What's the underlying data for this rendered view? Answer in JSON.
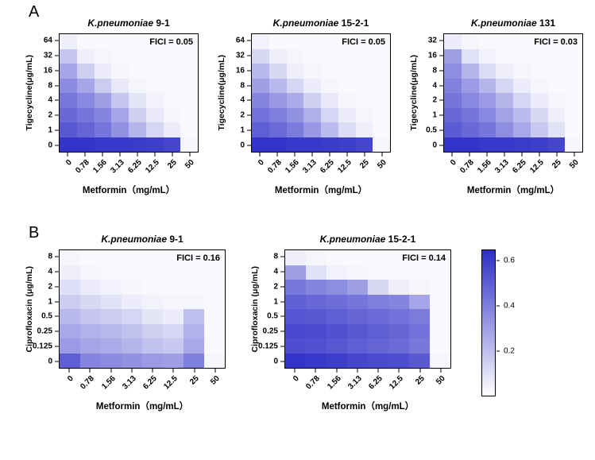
{
  "figure": {
    "section_a": "A",
    "section_b": "B"
  },
  "colorbar": {
    "tick_values": [
      0.6,
      0.4,
      0.2
    ],
    "tick_labels": [
      "0.6",
      "0.4",
      "0.2"
    ],
    "max": 0.65,
    "color_low": "#ffffff",
    "color_high": "#2e2ec8"
  },
  "chart_data": [
    {
      "type": "heatmap",
      "section": "A",
      "title_species": "K.pneumoniae",
      "title_strain": " 9-1",
      "fici": "FICI = 0.05",
      "xlabel": "Metformin（mg/mL）",
      "ylabel": "Tigecycline(μg/mL)",
      "x_ticks": [
        "0",
        "0.78",
        "1.56",
        "3.13",
        "6.25",
        "12.5",
        "25",
        "50"
      ],
      "y_ticks": [
        "64",
        "32",
        "16",
        "8",
        "4",
        "2",
        "1",
        "0"
      ],
      "values": [
        [
          0.05,
          0.02,
          0.02,
          0.02,
          0.02,
          0.02,
          0.02,
          0.02
        ],
        [
          0.18,
          0.05,
          0.03,
          0.02,
          0.02,
          0.02,
          0.02,
          0.02
        ],
        [
          0.28,
          0.15,
          0.06,
          0.03,
          0.02,
          0.02,
          0.02,
          0.02
        ],
        [
          0.36,
          0.28,
          0.16,
          0.07,
          0.03,
          0.02,
          0.02,
          0.02
        ],
        [
          0.42,
          0.37,
          0.3,
          0.18,
          0.08,
          0.04,
          0.02,
          0.02
        ],
        [
          0.47,
          0.43,
          0.38,
          0.28,
          0.15,
          0.07,
          0.03,
          0.02
        ],
        [
          0.52,
          0.48,
          0.43,
          0.34,
          0.23,
          0.13,
          0.06,
          0.02
        ],
        [
          0.63,
          0.63,
          0.62,
          0.62,
          0.61,
          0.6,
          0.58,
          0.03
        ]
      ]
    },
    {
      "type": "heatmap",
      "section": "A",
      "title_species": "K.pneumoniae",
      "title_strain": " 15-2-1",
      "fici": "FICI = 0.05",
      "xlabel": "Metformin（mg/mL）",
      "ylabel": "Tigecycline(μg/mL)",
      "x_ticks": [
        "0",
        "0.78",
        "1.56",
        "3.13",
        "6.25",
        "12.5",
        "25",
        "50"
      ],
      "y_ticks": [
        "64",
        "32",
        "16",
        "8",
        "4",
        "2",
        "1",
        "0"
      ],
      "values": [
        [
          0.04,
          0.02,
          0.02,
          0.02,
          0.02,
          0.02,
          0.02,
          0.02
        ],
        [
          0.12,
          0.05,
          0.03,
          0.02,
          0.02,
          0.02,
          0.02,
          0.02
        ],
        [
          0.22,
          0.12,
          0.05,
          0.03,
          0.02,
          0.02,
          0.02,
          0.02
        ],
        [
          0.3,
          0.22,
          0.13,
          0.06,
          0.03,
          0.02,
          0.02,
          0.02
        ],
        [
          0.38,
          0.32,
          0.26,
          0.15,
          0.07,
          0.03,
          0.02,
          0.02
        ],
        [
          0.44,
          0.4,
          0.34,
          0.25,
          0.13,
          0.06,
          0.03,
          0.02
        ],
        [
          0.5,
          0.46,
          0.41,
          0.32,
          0.21,
          0.11,
          0.05,
          0.02
        ],
        [
          0.63,
          0.63,
          0.62,
          0.62,
          0.61,
          0.6,
          0.58,
          0.03
        ]
      ]
    },
    {
      "type": "heatmap",
      "section": "A",
      "title_species": "K.pneumoniae",
      "title_strain": " 131",
      "fici": "FICI = 0.03",
      "xlabel": "Metformin（mg/mL）",
      "ylabel": "Tigecycline(μg/mL)",
      "x_ticks": [
        "0",
        "0.78",
        "1.56",
        "3.13",
        "6.25",
        "12.5",
        "25",
        "50"
      ],
      "y_ticks": [
        "32",
        "16",
        "8",
        "4",
        "2",
        "1",
        "0.5",
        "0"
      ],
      "values": [
        [
          0.06,
          0.03,
          0.02,
          0.02,
          0.02,
          0.02,
          0.02,
          0.02
        ],
        [
          0.3,
          0.09,
          0.04,
          0.02,
          0.02,
          0.02,
          0.02,
          0.02
        ],
        [
          0.35,
          0.23,
          0.11,
          0.05,
          0.03,
          0.02,
          0.02,
          0.02
        ],
        [
          0.39,
          0.31,
          0.23,
          0.13,
          0.06,
          0.03,
          0.02,
          0.02
        ],
        [
          0.43,
          0.37,
          0.31,
          0.23,
          0.13,
          0.06,
          0.03,
          0.02
        ],
        [
          0.47,
          0.43,
          0.37,
          0.29,
          0.21,
          0.12,
          0.05,
          0.02
        ],
        [
          0.51,
          0.47,
          0.43,
          0.35,
          0.27,
          0.17,
          0.09,
          0.02
        ],
        [
          0.63,
          0.63,
          0.62,
          0.62,
          0.61,
          0.6,
          0.58,
          0.03
        ]
      ]
    },
    {
      "type": "heatmap",
      "section": "B",
      "title_species": "K.pneumoniae",
      "title_strain": " 9-1",
      "fici": "FICI = 0.16",
      "xlabel": "Metformin（mg/mL）",
      "ylabel": "Ciprofloxacin (μg/mL)",
      "x_ticks": [
        "0",
        "0.78",
        "1.56",
        "3.13",
        "6.25",
        "12.5",
        "25",
        "50"
      ],
      "y_ticks": [
        "8",
        "4",
        "2",
        "1",
        "0.5",
        "0.25",
        "0.125",
        "0"
      ],
      "values": [
        [
          0.03,
          0.02,
          0.02,
          0.02,
          0.02,
          0.02,
          0.02,
          0.02
        ],
        [
          0.05,
          0.03,
          0.02,
          0.02,
          0.02,
          0.02,
          0.02,
          0.02
        ],
        [
          0.1,
          0.06,
          0.04,
          0.03,
          0.02,
          0.02,
          0.02,
          0.02
        ],
        [
          0.16,
          0.12,
          0.09,
          0.06,
          0.04,
          0.03,
          0.03,
          0.02
        ],
        [
          0.22,
          0.18,
          0.16,
          0.13,
          0.08,
          0.06,
          0.2,
          0.02
        ],
        [
          0.27,
          0.24,
          0.22,
          0.19,
          0.15,
          0.13,
          0.24,
          0.02
        ],
        [
          0.31,
          0.28,
          0.26,
          0.23,
          0.19,
          0.17,
          0.27,
          0.02
        ],
        [
          0.5,
          0.38,
          0.36,
          0.34,
          0.31,
          0.3,
          0.4,
          0.03
        ]
      ]
    },
    {
      "type": "heatmap",
      "section": "B",
      "title_species": "K.pneumoniae",
      "title_strain": " 15-2-1",
      "fici": "FICI = 0.14",
      "xlabel": "Metformin（mg/mL）",
      "ylabel": "Ciprofloxacin (μg/mL)",
      "x_ticks": [
        "0",
        "0.78",
        "1.56",
        "3.13",
        "6.25",
        "12.5",
        "25",
        "50"
      ],
      "y_ticks": [
        "8",
        "4",
        "2",
        "1",
        "0.5",
        "0.25",
        "0.125",
        "0"
      ],
      "values": [
        [
          0.05,
          0.03,
          0.02,
          0.02,
          0.02,
          0.02,
          0.02,
          0.02
        ],
        [
          0.3,
          0.09,
          0.04,
          0.03,
          0.02,
          0.02,
          0.02,
          0.02
        ],
        [
          0.42,
          0.38,
          0.35,
          0.3,
          0.12,
          0.05,
          0.03,
          0.02
        ],
        [
          0.49,
          0.47,
          0.45,
          0.43,
          0.4,
          0.38,
          0.28,
          0.02
        ],
        [
          0.53,
          0.52,
          0.5,
          0.48,
          0.46,
          0.44,
          0.41,
          0.02
        ],
        [
          0.57,
          0.56,
          0.54,
          0.52,
          0.5,
          0.48,
          0.44,
          0.02
        ],
        [
          0.55,
          0.54,
          0.52,
          0.5,
          0.48,
          0.46,
          0.42,
          0.02
        ],
        [
          0.63,
          0.62,
          0.6,
          0.58,
          0.56,
          0.55,
          0.52,
          0.03
        ]
      ]
    }
  ]
}
